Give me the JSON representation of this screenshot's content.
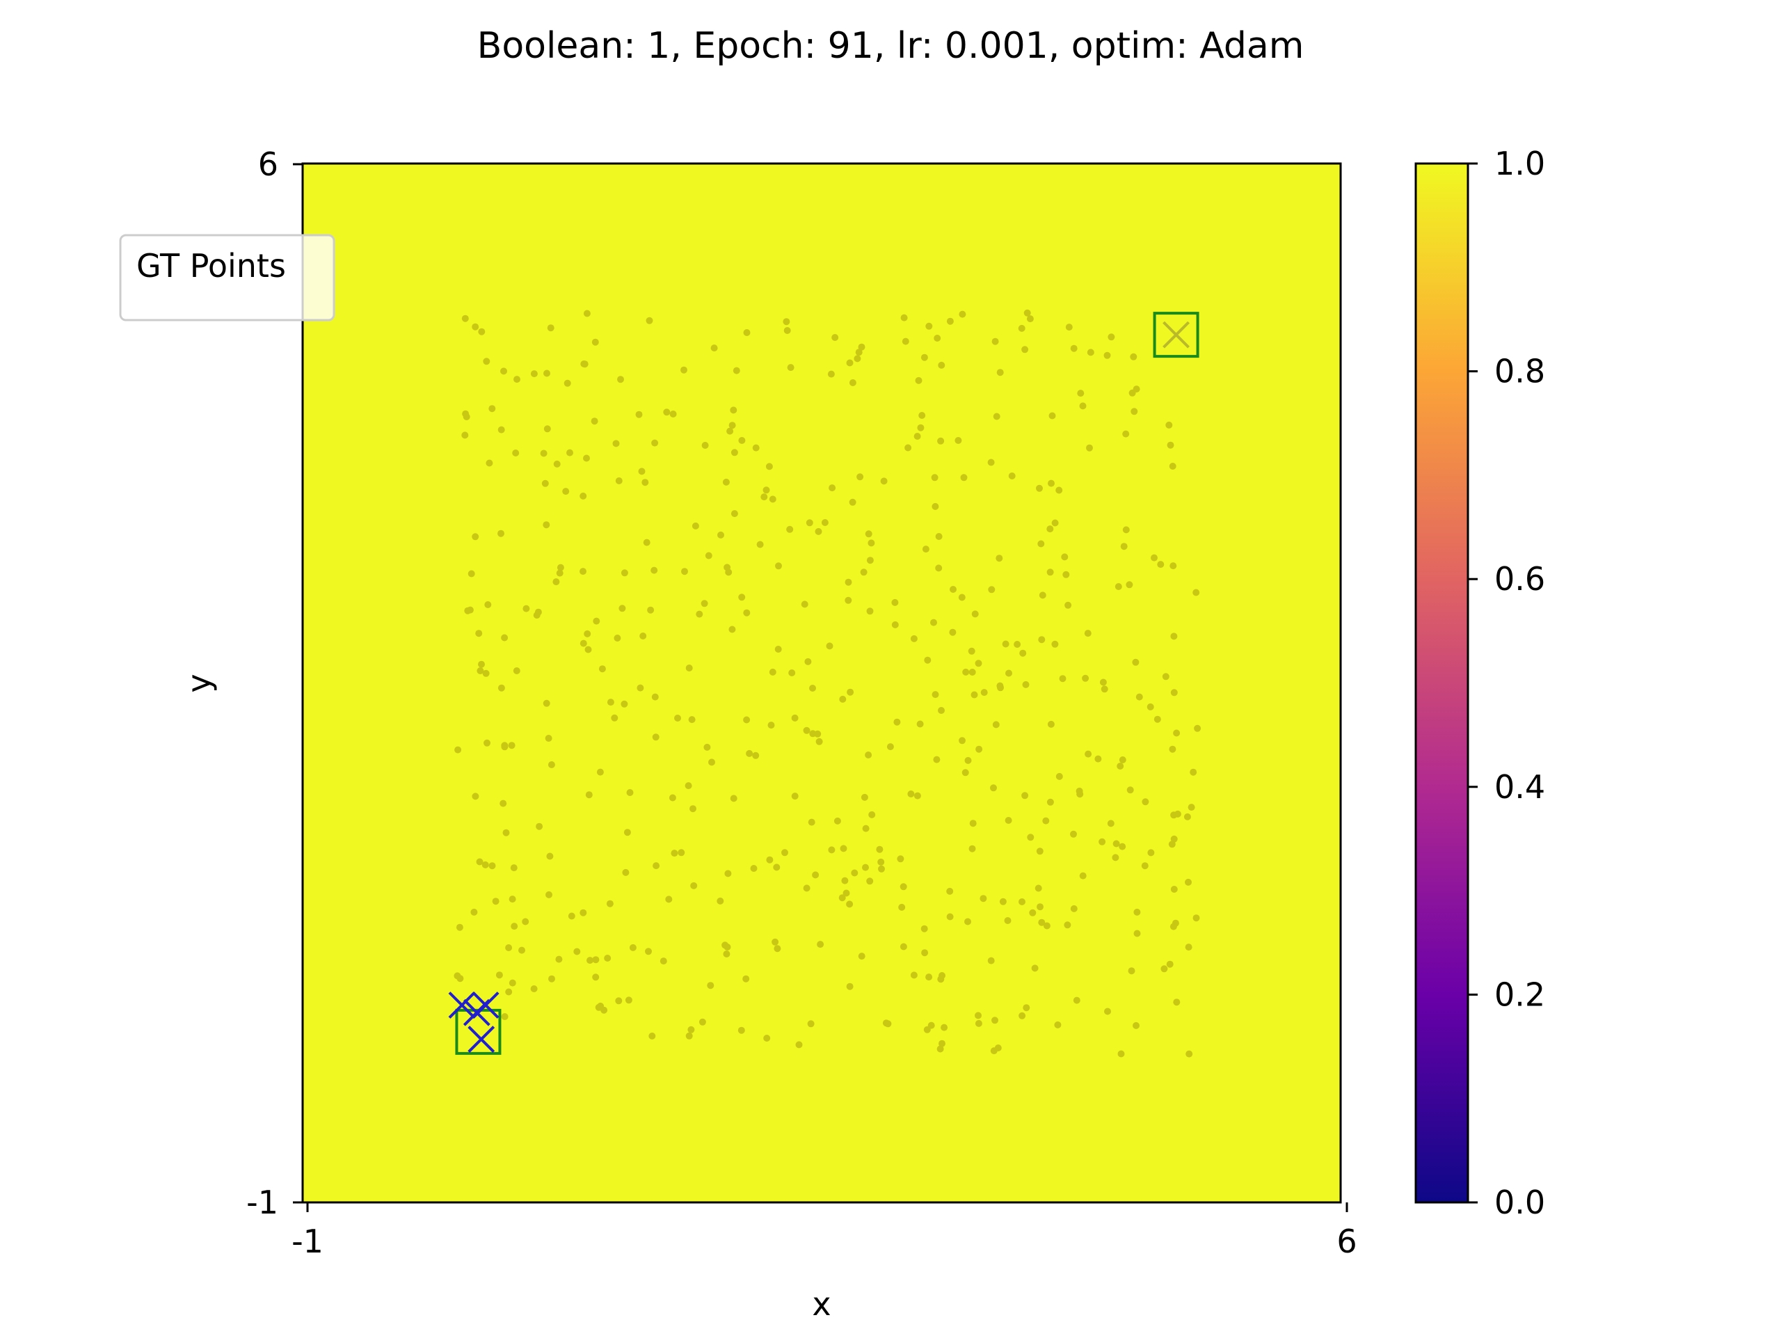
{
  "chart_data": {
    "type": "scatter",
    "title": "Boolean: 1, Epoch: 91, lr: 0.001, optim: Adam",
    "xlabel": "x",
    "ylabel": "y",
    "xlim": [
      -1,
      6
    ],
    "ylim": [
      -1,
      6
    ],
    "xticks": [
      -1,
      6
    ],
    "yticks": [
      -1,
      6
    ],
    "background_value": 0.95,
    "colormap": "plasma",
    "colorbar": {
      "range": [
        0,
        1
      ],
      "ticks": [
        "0.0",
        "0.2",
        "0.4",
        "0.6",
        "0.8",
        "1.0"
      ],
      "colors": [
        "#0d0887",
        "#6a00a8",
        "#b12a90",
        "#e16462",
        "#fca636",
        "#f0f921"
      ]
    },
    "legend": {
      "entries": [
        "GT Points"
      ],
      "placement": "upper-left"
    },
    "colors": {
      "field": "#eff821",
      "sample_points": "#c8c814",
      "gt_box": "#1a8a1a",
      "prediction": "#1f1fd0"
    },
    "gt_points": [
      {
        "x": 0.15,
        "y": 0.15
      },
      {
        "x": 4.85,
        "y": 4.85
      }
    ],
    "predictions": [
      {
        "x": 0.04,
        "y": 0.33
      },
      {
        "x": 0.14,
        "y": 0.28
      },
      {
        "x": 0.2,
        "y": 0.33
      },
      {
        "x": 0.17,
        "y": 0.1
      },
      {
        "x": 4.85,
        "y": 4.85
      }
    ]
  }
}
